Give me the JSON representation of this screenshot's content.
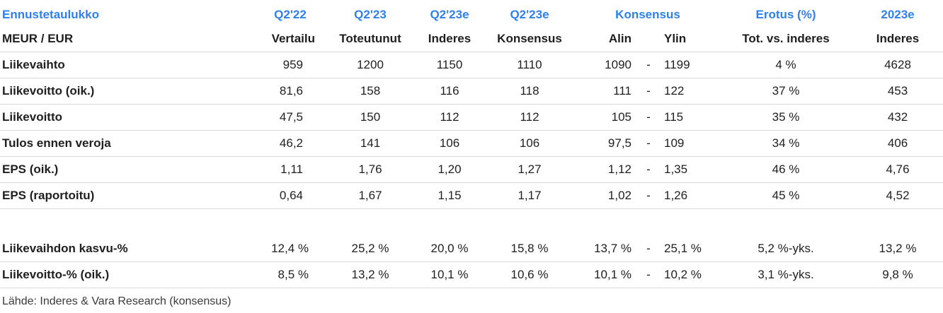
{
  "header1": {
    "title": "Ennustetaulukko",
    "q2_22": "Q2'22",
    "q2_23": "Q2'23",
    "q2_23e_a": "Q2'23e",
    "q2_23e_b": "Q2'23e",
    "konsensus": "Konsensus",
    "erotus": "Erotus (%)",
    "y2023e": "2023e"
  },
  "header2": {
    "unit": "MEUR / EUR",
    "vertailu": "Vertailu",
    "toteutunut": "Toteutunut",
    "inderes": "Inderes",
    "konsensus": "Konsensus",
    "alin": "Alin",
    "ylin": "Ylin",
    "tot_vs": "Tot. vs. inderes",
    "inderes2": "Inderes"
  },
  "rows": [
    {
      "label": "Liikevaihto",
      "q222": "959",
      "q223": "1200",
      "ind": "1150",
      "kons": "1110",
      "alin": "1090",
      "dash": "-",
      "ylin": "1199",
      "erotus": "4 %",
      "y2023": "4628"
    },
    {
      "label": "Liikevoitto (oik.)",
      "q222": "81,6",
      "q223": "158",
      "ind": "116",
      "kons": "118",
      "alin": "111",
      "dash": "-",
      "ylin": "122",
      "erotus": "37 %",
      "y2023": "453"
    },
    {
      "label": "Liikevoitto",
      "q222": "47,5",
      "q223": "150",
      "ind": "112",
      "kons": "112",
      "alin": "105",
      "dash": "-",
      "ylin": "115",
      "erotus": "35 %",
      "y2023": "432"
    },
    {
      "label": "Tulos ennen veroja",
      "q222": "46,2",
      "q223": "141",
      "ind": "106",
      "kons": "106",
      "alin": "97,5",
      "dash": "-",
      "ylin": "109",
      "erotus": "34 %",
      "y2023": "406"
    },
    {
      "label": "EPS (oik.)",
      "q222": "1,11",
      "q223": "1,76",
      "ind": "1,20",
      "kons": "1,27",
      "alin": "1,12",
      "dash": "-",
      "ylin": "1,35",
      "erotus": "46 %",
      "y2023": "4,76"
    },
    {
      "label": "EPS (raportoitu)",
      "q222": "0,64",
      "q223": "1,67",
      "ind": "1,15",
      "kons": "1,17",
      "alin": "1,02",
      "dash": "-",
      "ylin": "1,26",
      "erotus": "45 %",
      "y2023": "4,52"
    },
    {
      "label": "Liikevaihdon kasvu-%",
      "q222": "12,4 %",
      "q223": "25,2 %",
      "ind": "20,0 %",
      "kons": "15,8 %",
      "alin": "13,7 %",
      "dash": "-",
      "ylin": "25,1 %",
      "erotus": "5,2 %-yks.",
      "y2023": "13,2 %"
    },
    {
      "label": "Liikevoitto-% (oik.)",
      "q222": "8,5 %",
      "q223": "13,2 %",
      "ind": "10,1 %",
      "kons": "10,6 %",
      "alin": "10,1 %",
      "dash": "-",
      "ylin": "10,2 %",
      "erotus": "3,1 %-yks.",
      "y2023": "9,8 %"
    }
  ],
  "source": "Lähde: Inderes & Vara Research  (konsensus)"
}
